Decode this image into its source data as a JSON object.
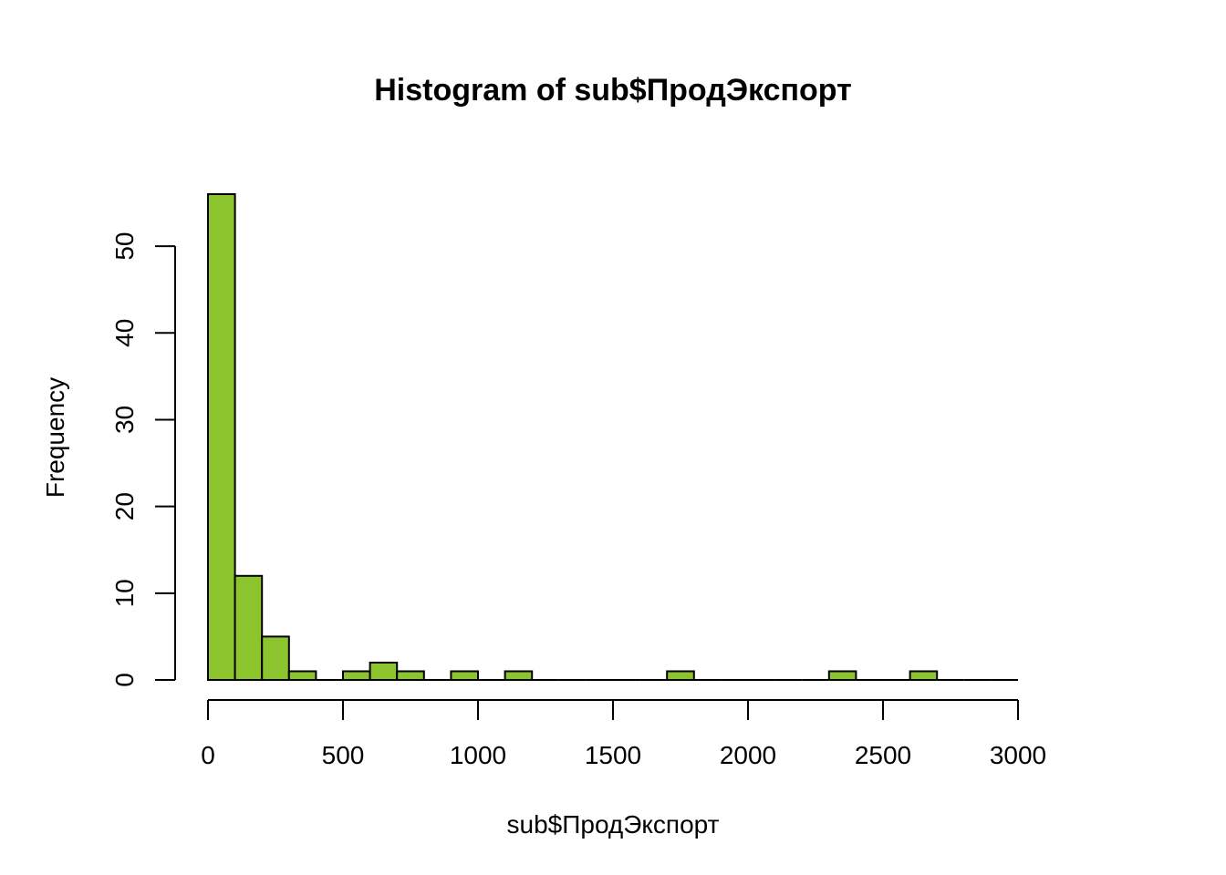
{
  "chart_data": {
    "type": "bar",
    "title": "Histogram of sub$ПродЭкспорт",
    "xlabel": "sub$ПродЭкспорт",
    "ylabel": "Frequency",
    "bar_color": "#8bc42d",
    "bin_width": 100,
    "x_start": 0,
    "values": [
      56,
      12,
      5,
      1,
      0,
      1,
      2,
      1,
      0,
      1,
      0,
      1,
      0,
      0,
      0,
      0,
      0,
      1,
      0,
      0,
      0,
      0,
      0,
      1,
      0,
      0,
      1,
      0,
      0,
      0
    ],
    "xlim": [
      0,
      3000
    ],
    "ylim": [
      0,
      56
    ],
    "x_ticks": [
      0,
      500,
      1000,
      1500,
      2000,
      2500,
      3000
    ],
    "y_ticks": [
      0,
      10,
      20,
      30,
      40,
      50
    ],
    "grid": false
  }
}
